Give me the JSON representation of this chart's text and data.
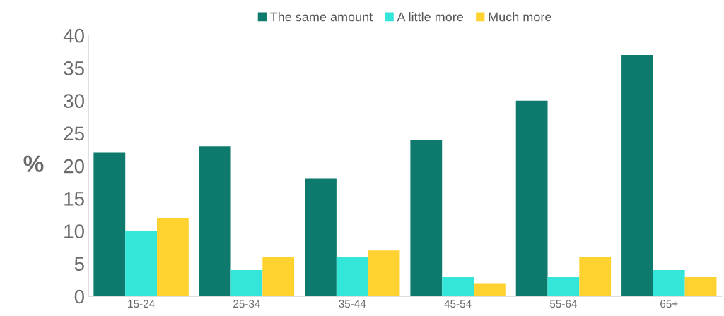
{
  "chart_data": {
    "type": "bar",
    "ylabel": "%",
    "categories": [
      "15-24",
      "25-34",
      "35-44",
      "45-54",
      "55-64",
      "65+"
    ],
    "series": [
      {
        "name": "The same amount",
        "color": "#0e7a6e",
        "values": [
          22,
          23,
          18,
          24,
          30,
          37
        ]
      },
      {
        "name": "A little more",
        "color": "#33e6d9",
        "values": [
          10,
          4,
          6,
          3,
          3,
          4
        ]
      },
      {
        "name": "Much more",
        "color": "#ffd230",
        "values": [
          12,
          6,
          7,
          2,
          6,
          3
        ]
      }
    ],
    "ylim": [
      0,
      40
    ],
    "yticks": [
      0,
      5,
      10,
      15,
      20,
      25,
      30,
      35,
      40
    ],
    "grid": false,
    "legend": "top"
  }
}
